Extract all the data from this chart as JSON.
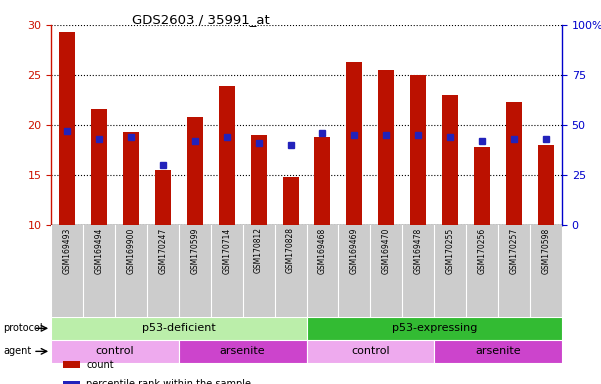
{
  "title": "GDS2603 / 35991_at",
  "samples": [
    "GSM169493",
    "GSM169494",
    "GSM169900",
    "GSM170247",
    "GSM170599",
    "GSM170714",
    "GSM170812",
    "GSM170828",
    "GSM169468",
    "GSM169469",
    "GSM169470",
    "GSM169478",
    "GSM170255",
    "GSM170256",
    "GSM170257",
    "GSM170598"
  ],
  "counts": [
    29.3,
    21.6,
    19.3,
    15.5,
    20.8,
    23.9,
    19.0,
    14.8,
    18.8,
    26.3,
    25.5,
    25.0,
    23.0,
    17.8,
    22.3,
    18.0
  ],
  "percentiles_pct": [
    47,
    43,
    44,
    30,
    42,
    44,
    41,
    40,
    46,
    45,
    45,
    45,
    44,
    42,
    43,
    43
  ],
  "bar_bottom": 10,
  "ylim_left": [
    10,
    30
  ],
  "ylim_right": [
    0,
    100
  ],
  "yticks_left": [
    10,
    15,
    20,
    25,
    30
  ],
  "yticks_right": [
    0,
    25,
    50,
    75,
    100
  ],
  "ytick_labels_right": [
    "0",
    "25",
    "50",
    "75",
    "100%"
  ],
  "bar_color": "#bb1100",
  "blue_color": "#2222bb",
  "protocol_groups": [
    {
      "label": "p53-deficient",
      "start": 0,
      "end": 8,
      "color": "#bbeeaa"
    },
    {
      "label": "p53-expressing",
      "start": 8,
      "end": 16,
      "color": "#33bb33"
    }
  ],
  "agent_groups": [
    {
      "label": "control",
      "start": 0,
      "end": 4,
      "color": "#eeaaee"
    },
    {
      "label": "arsenite",
      "start": 4,
      "end": 8,
      "color": "#cc44cc"
    },
    {
      "label": "control",
      "start": 8,
      "end": 12,
      "color": "#eeaaee"
    },
    {
      "label": "arsenite",
      "start": 12,
      "end": 16,
      "color": "#cc44cc"
    }
  ],
  "left_tick_color": "#cc1100",
  "right_tick_color": "#0000cc",
  "legend_items": [
    {
      "label": "count",
      "color": "#bb1100"
    },
    {
      "label": "percentile rank within the sample",
      "color": "#2222bb"
    }
  ],
  "tick_bg_color": "#cccccc",
  "fig_width": 6.01,
  "fig_height": 3.84,
  "dpi": 100
}
